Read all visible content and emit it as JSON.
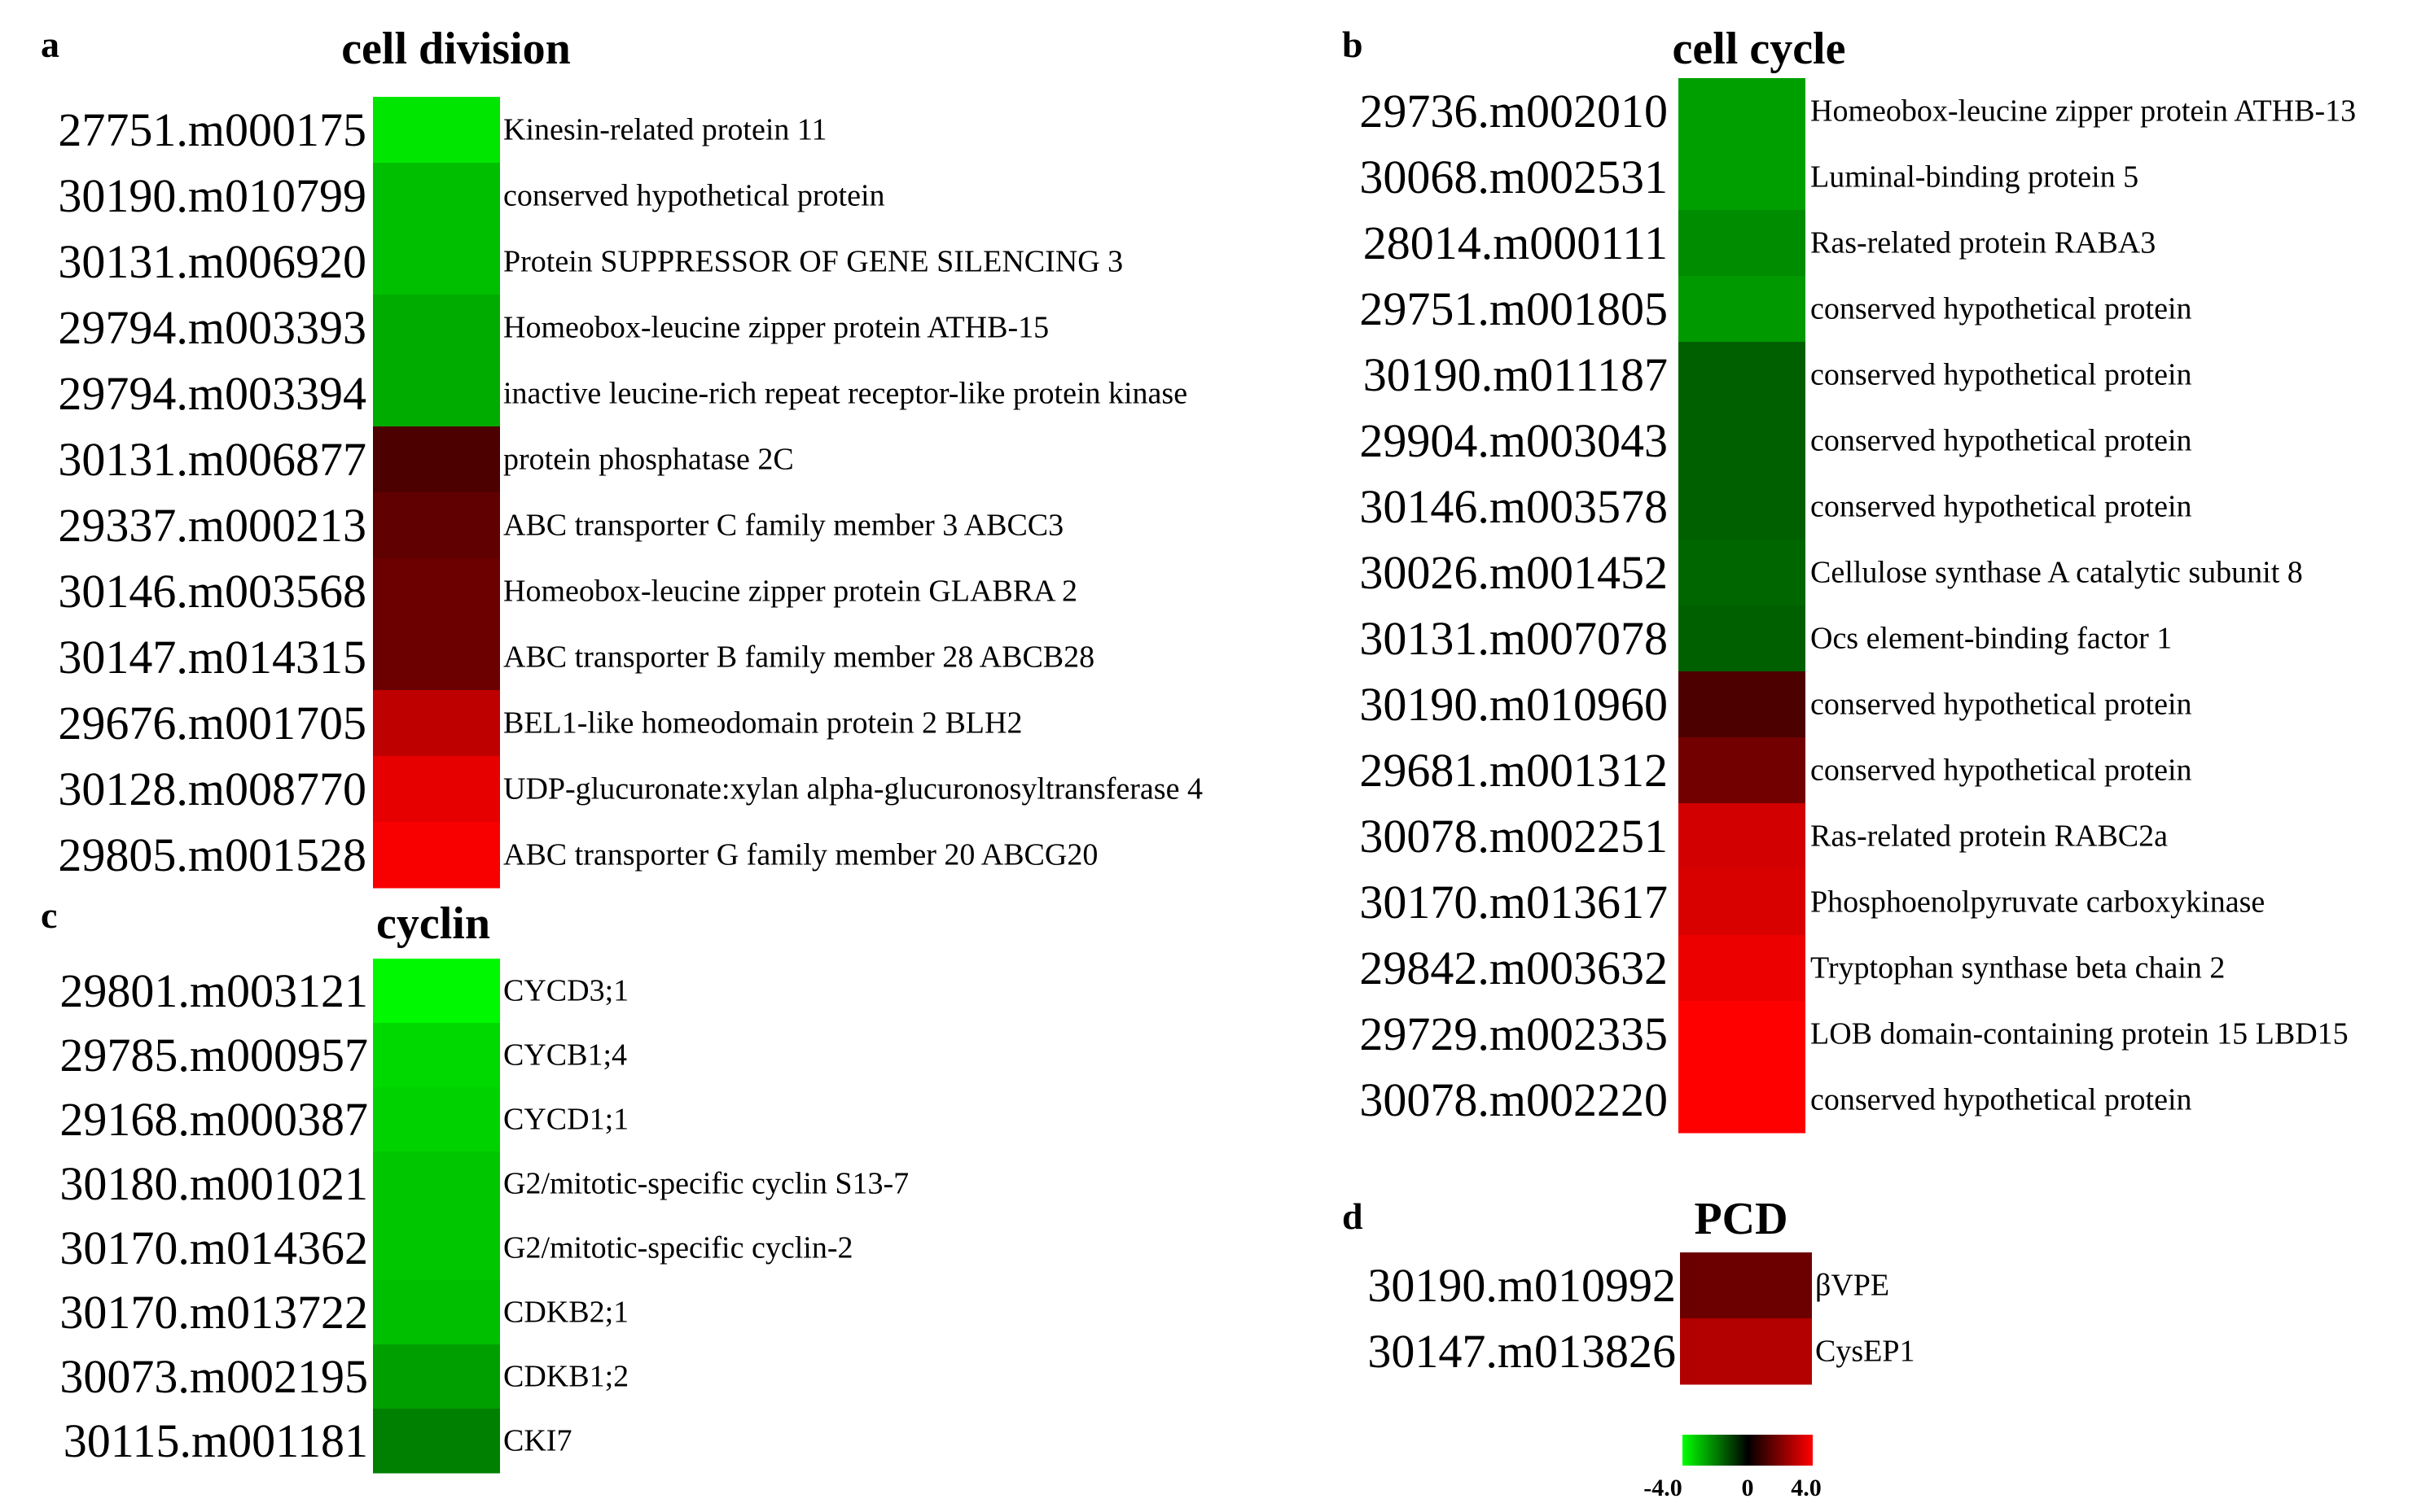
{
  "chart_data": [
    {
      "type": "heatmap",
      "panel": "a",
      "title": "cell division",
      "rows": [
        {
          "id": "27751.m000175",
          "label": "Kinesin-related protein 11",
          "value": -3.6
        },
        {
          "id": "30190.m010799",
          "label": "conserved hypothetical protein",
          "value": -3.0
        },
        {
          "id": "30131.m006920",
          "label": "Protein SUPPRESSOR OF GENE SILENCING 3",
          "value": -3.0
        },
        {
          "id": "29794.m003393",
          "label": "Homeobox-leucine zipper protein ATHB-15",
          "value": -2.7
        },
        {
          "id": "29794.m003394",
          "label": "inactive leucine-rich repeat receptor-like protein kinase",
          "value": -2.7
        },
        {
          "id": "30131.m006877",
          "label": "protein phosphatase 2C",
          "value": 1.2
        },
        {
          "id": "29337.m000213",
          "label": "ABC transporter C family member 3 ABCC3",
          "value": 1.5
        },
        {
          "id": "30146.m003568",
          "label": "Homeobox-leucine zipper protein GLABRA 2",
          "value": 1.7
        },
        {
          "id": "30147.m014315",
          "label": "ABC transporter B family member 28 ABCB28",
          "value": 1.7
        },
        {
          "id": "29676.m001705",
          "label": "BEL1-like homeodomain protein 2 BLH2",
          "value": 3.0
        },
        {
          "id": "30128.m008770",
          "label": "UDP-glucuronate:xylan alpha-glucuronosyltransferase 4",
          "value": 3.6
        },
        {
          "id": "29805.m001528",
          "label": "ABC transporter G family member 20 ABCG20",
          "value": 3.9
        }
      ]
    },
    {
      "type": "heatmap",
      "panel": "b",
      "title": "cell cycle",
      "rows": [
        {
          "id": "29736.m002010",
          "label": "Homeobox-leucine zipper protein ATHB-13",
          "value": -2.5
        },
        {
          "id": "30068.m002531",
          "label": "Luminal-binding protein 5",
          "value": -2.5
        },
        {
          "id": "28014.m000111",
          "label": "Ras-related protein RABA3",
          "value": -2.2
        },
        {
          "id": "29751.m001805",
          "label": "conserved hypothetical protein",
          "value": -2.4
        },
        {
          "id": "30190.m011187",
          "label": "conserved hypothetical protein",
          "value": -1.5
        },
        {
          "id": "29904.m003043",
          "label": "conserved hypothetical protein",
          "value": -1.5
        },
        {
          "id": "30146.m003578",
          "label": "conserved hypothetical protein",
          "value": -1.5
        },
        {
          "id": "30026.m001452",
          "label": "Cellulose synthase A catalytic subunit 8",
          "value": -1.6
        },
        {
          "id": "30131.m007078",
          "label": "Ocs element-binding factor 1",
          "value": -1.5
        },
        {
          "id": "30190.m010960",
          "label": "conserved hypothetical protein",
          "value": 1.2
        },
        {
          "id": "29681.m001312",
          "label": "conserved hypothetical protein",
          "value": 1.8
        },
        {
          "id": "30078.m002251",
          "label": "Ras-related protein RABC2a",
          "value": 3.3
        },
        {
          "id": "30170.m013617",
          "label": "Phosphoenolpyruvate carboxykinase",
          "value": 3.4
        },
        {
          "id": "29842.m003632",
          "label": "Tryptophan synthase beta chain 2",
          "value": 3.7
        },
        {
          "id": "29729.m002335",
          "label": "LOB domain-containing protein 15 LBD15",
          "value": 4.0
        },
        {
          "id": "30078.m002220",
          "label": "conserved hypothetical protein",
          "value": 4.0
        }
      ]
    },
    {
      "type": "heatmap",
      "panel": "c",
      "title": "cyclin",
      "rows": [
        {
          "id": "29801.m003121",
          "label": "CYCD3;1",
          "value": -3.9
        },
        {
          "id": "29785.m000957",
          "label": "CYCB1;4",
          "value": -3.4
        },
        {
          "id": "29168.m000387",
          "label": "CYCD1;1",
          "value": -3.3
        },
        {
          "id": "30180.m001021",
          "label": "G2/mitotic-specific cyclin S13-7",
          "value": -3.1
        },
        {
          "id": "30170.m014362",
          "label": "G2/mitotic-specific cyclin-2",
          "value": -3.1
        },
        {
          "id": "30170.m013722",
          "label": "CDKB2;1",
          "value": -3.0
        },
        {
          "id": "30073.m002195",
          "label": "CDKB1;2",
          "value": -2.5
        },
        {
          "id": "30115.m001181",
          "label": "CKI7",
          "value": -2.0
        }
      ]
    },
    {
      "type": "heatmap",
      "panel": "d",
      "title": "PCD",
      "rows": [
        {
          "id": "30190.m010992",
          "label": "βVPE",
          "value": 1.7
        },
        {
          "id": "30147.m013826",
          "label": "CysEP1",
          "value": 2.8
        }
      ]
    }
  ],
  "colorbar": {
    "min": -4.0,
    "mid": 0,
    "max": 4.0,
    "tick_labels": [
      "-4.0",
      "0",
      "4.0"
    ],
    "colors": {
      "low": "#00ff00",
      "mid": "#000000",
      "high": "#ff0000"
    }
  }
}
